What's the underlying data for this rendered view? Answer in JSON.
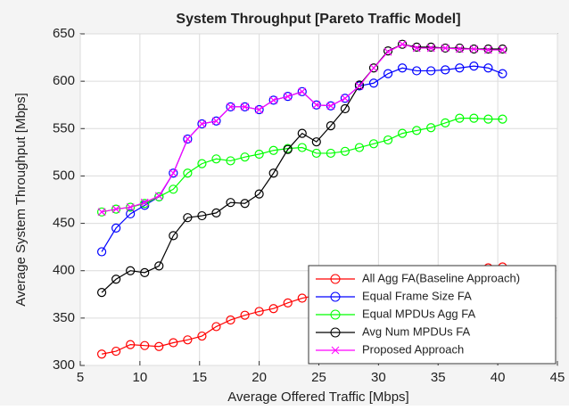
{
  "chart_data": {
    "type": "line",
    "title": "System Throughput [Pareto Traffic Model]",
    "xlabel": "Average Offered Traffic [Mbps]",
    "ylabel": "Average System Throughput [Mbps]",
    "x": [
      6.8,
      8.0,
      9.2,
      10.4,
      11.6,
      12.8,
      14.0,
      15.2,
      16.4,
      17.6,
      18.8,
      20.0,
      21.2,
      22.4,
      23.6,
      24.8,
      26.0,
      27.2,
      28.4,
      29.6,
      30.8,
      32.0,
      33.2,
      34.4,
      35.6,
      36.8,
      38.0,
      39.2,
      40.4
    ],
    "series": [
      {
        "name": "All Agg FA(Baseline Approach)",
        "color": "#ff0000",
        "marker": "o",
        "values": [
          312,
          315,
          322,
          321,
          320,
          324,
          327,
          331,
          341,
          348,
          353,
          357,
          360,
          366,
          371,
          374,
          378,
          381,
          384,
          386,
          389,
          391,
          393,
          395,
          398,
          400,
          401,
          403,
          404
        ]
      },
      {
        "name": "Equal Frame Size FA",
        "color": "#0000ff",
        "marker": "o",
        "values": [
          420,
          445,
          460,
          469,
          478,
          503,
          539,
          555,
          558,
          573,
          573,
          570,
          580,
          584,
          589,
          575,
          574,
          582,
          595,
          598,
          608,
          614,
          611,
          611,
          612,
          614,
          616,
          614,
          608
        ]
      },
      {
        "name": "Equal MPDUs Agg FA",
        "color": "#00ff00",
        "marker": "o",
        "values": [
          462,
          465,
          467,
          471,
          478,
          486,
          503,
          513,
          518,
          516,
          520,
          523,
          527,
          529,
          530,
          524,
          524,
          526,
          530,
          534,
          538,
          545,
          548,
          551,
          556,
          561,
          561,
          560,
          560
        ]
      },
      {
        "name": "Avg Num MPDUs FA",
        "color": "#000000",
        "marker": "o",
        "values": [
          377,
          391,
          400,
          398,
          405,
          437,
          456,
          458,
          461,
          472,
          471,
          481,
          503,
          528,
          545,
          536,
          553,
          571,
          596,
          614,
          632,
          639,
          636,
          636,
          635,
          635,
          634,
          634,
          634
        ]
      },
      {
        "name": "Proposed Approach",
        "color": "#ff00ff",
        "marker": "x",
        "values": [
          462,
          465,
          467,
          472,
          479,
          503,
          539,
          555,
          558,
          573,
          573,
          570,
          580,
          584,
          589,
          575,
          574,
          582,
          595,
          614,
          631,
          639,
          635,
          635,
          635,
          634,
          634,
          633,
          633
        ]
      }
    ],
    "xlim": [
      5,
      45
    ],
    "xticks": [
      5,
      10,
      15,
      20,
      25,
      30,
      35,
      40,
      45
    ],
    "ylim": [
      300,
      650
    ],
    "yticks": [
      300,
      350,
      400,
      450,
      500,
      550,
      600,
      650
    ],
    "grid": true,
    "legend": "lower right"
  }
}
